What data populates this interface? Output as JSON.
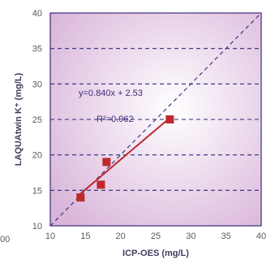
{
  "chart_data": {
    "type": "scatter",
    "xlabel": "ICP-OES (mg/L)",
    "ylabel": "LAQUAtwin K⁺ (mg/L)",
    "xlim": [
      10,
      40
    ],
    "ylim": [
      10,
      40
    ],
    "xticks": [
      "10",
      "15",
      "20",
      "25",
      "30",
      "35",
      "40"
    ],
    "yticks": [
      "10",
      "15",
      "20",
      "25",
      "30",
      "35",
      "40"
    ],
    "grid": "horizontal dashed",
    "stray_label": "00",
    "points": [
      {
        "x": 14.3,
        "y": 14.0
      },
      {
        "x": 17.2,
        "y": 15.8
      },
      {
        "x": 18.0,
        "y": 19.0
      },
      {
        "x": 27.0,
        "y": 25.0
      }
    ],
    "fit_line": {
      "slope": 0.84,
      "intercept": 2.53,
      "x_range": [
        14.3,
        27.0
      ]
    },
    "reference_line": {
      "slope": 1,
      "intercept": 0
    },
    "annotations": {
      "equation": "y=0.840x + 2.53",
      "r_squared": "R²=0.962"
    },
    "colors": {
      "plot_background_center": "#ffffff",
      "plot_background_edge": "#d9b5da",
      "marker": "#c0282e",
      "fit_line": "#c0282e",
      "reference_line": "#2a2a7a",
      "grid": "#2a2a7a",
      "frame": "#3b2a78"
    }
  }
}
